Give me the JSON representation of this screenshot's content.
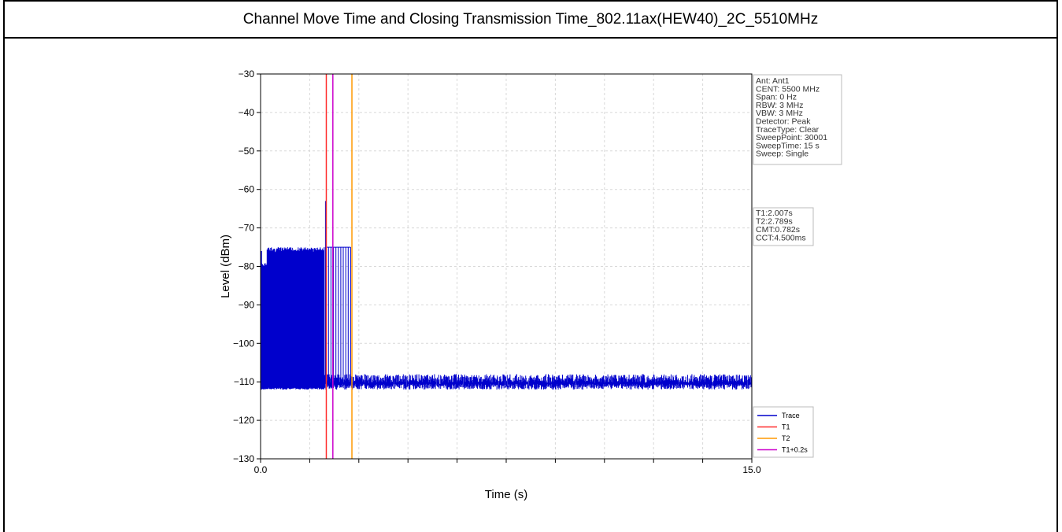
{
  "header": {
    "title": "Channel Move Time and Closing Transmission Time_802.11ax(HEW40)_2C_5510MHz"
  },
  "chart_data": {
    "type": "line",
    "xlabel": "Time (s)",
    "ylabel": "Level (dBm)",
    "xlim": [
      0.0,
      15.0
    ],
    "ylim": [
      -130,
      -30
    ],
    "x_tick_labels": [
      "0.0",
      "15.0"
    ],
    "y_ticks": [
      -30,
      -40,
      -50,
      -60,
      -70,
      -80,
      -90,
      -100,
      -110,
      -120,
      -130
    ],
    "grid": true,
    "settings_box": [
      "Ant: Ant1",
      "CENT: 5500 MHz",
      "Span: 0 Hz",
      "RBW: 3 MHz",
      "VBW: 3 MHz",
      "Detector: Peak",
      "TraceType: Clear",
      "SweepPoint: 30001",
      "SweepTime: 15 s",
      "Sweep: Single"
    ],
    "results_box": [
      "T1:2.007s",
      "T2:2.789s",
      "CMT:0.782s",
      "CCT:4.500ms"
    ],
    "markers": [
      {
        "name": "T1",
        "x": 2.007,
        "color": "#ff2a2a"
      },
      {
        "name": "T1+0.2s",
        "x": 2.207,
        "color": "#cc00cc"
      },
      {
        "name": "T2",
        "x": 2.789,
        "color": "#ff9900"
      }
    ],
    "series": [
      {
        "name": "Trace",
        "color": "#0000cc",
        "segments": [
          {
            "x_start": 0.0,
            "x_end": 0.2,
            "level_top": -79,
            "level_bottom": -112
          },
          {
            "x_start": 0.2,
            "x_end": 1.95,
            "level_top": -75,
            "level_bottom": -112
          },
          {
            "x_start": 1.95,
            "x_end": 15.0,
            "level_top": -109,
            "level_bottom": -112
          }
        ],
        "spike": {
          "x": 1.98,
          "level": -63
        },
        "bursts": {
          "x_start": 2.0,
          "x_end": 2.75,
          "count": 11,
          "level": -75
        }
      }
    ],
    "legend": {
      "placement": "bottom-right",
      "entries": [
        {
          "label": "Trace",
          "color": "#0000cc"
        },
        {
          "label": "T1",
          "color": "#ff2a2a"
        },
        {
          "label": "T2",
          "color": "#ff9900"
        },
        {
          "label": "T1+0.2s",
          "color": "#cc00cc"
        }
      ]
    }
  }
}
